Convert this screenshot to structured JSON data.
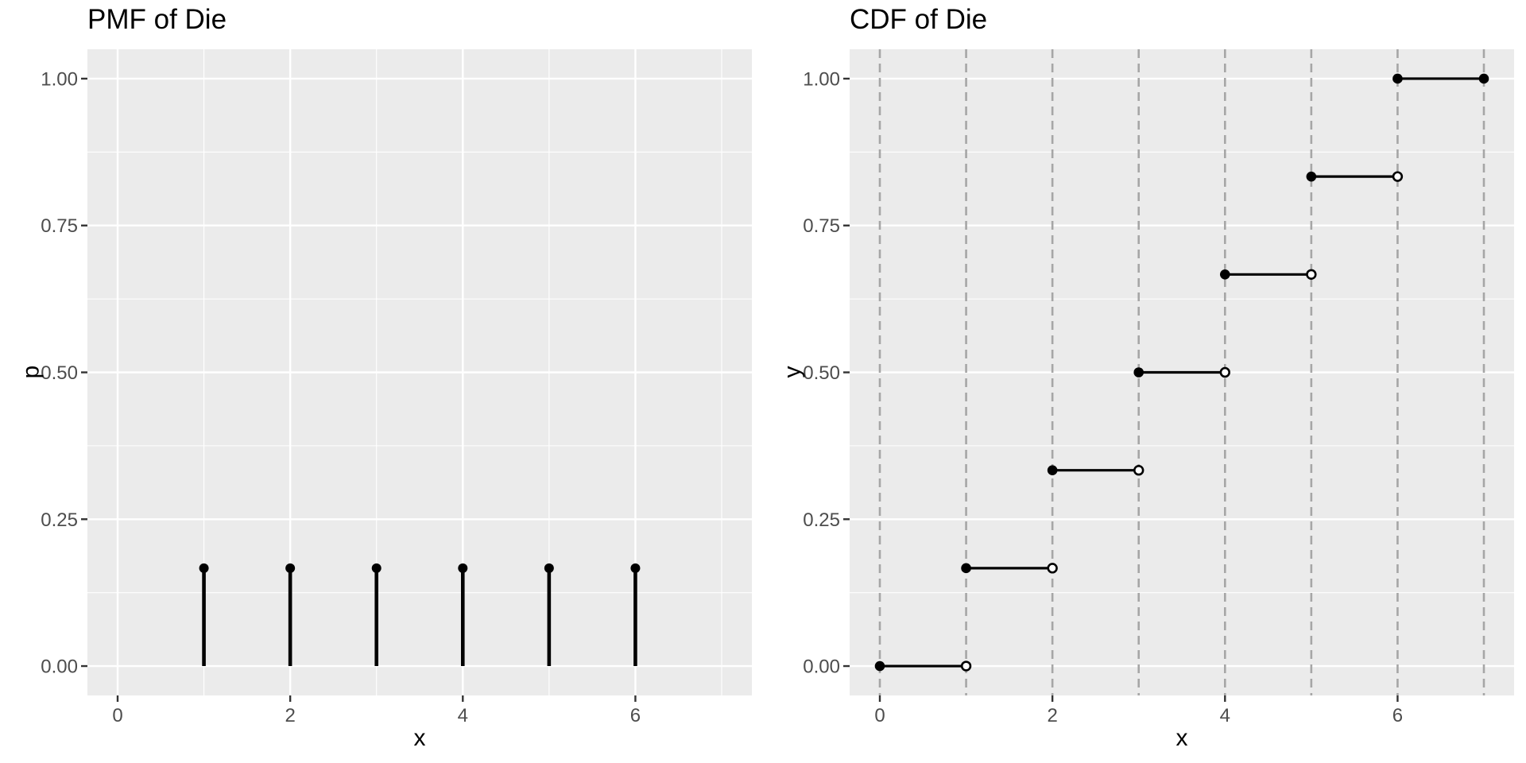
{
  "figure": {
    "background": "#FFFFFF",
    "panel_background": "#EBEBEB",
    "gridline_color": "#FFFFFF",
    "dashed_line_color": "#A6A6A6",
    "data_color": "#000000",
    "open_point_fill": "#FFFFFF",
    "tick_label_color": "#4D4D4D",
    "tick_mark_color": "#333333",
    "title_color": "#000000"
  },
  "chart_data": [
    {
      "type": "stem",
      "title": "PMF of Die",
      "xlabel": "x",
      "ylabel": "p",
      "x": [
        1,
        2,
        3,
        4,
        5,
        6
      ],
      "values": [
        0.1667,
        0.1667,
        0.1667,
        0.1667,
        0.1667,
        0.1667
      ],
      "xlim": [
        -0.35,
        7.35
      ],
      "ylim": [
        -0.05,
        1.05
      ],
      "x_tick_labels": [
        "0",
        "2",
        "4",
        "6"
      ],
      "x_tick_values": [
        0,
        2,
        4,
        6
      ],
      "x_minor_grid": [
        1,
        3,
        5,
        7
      ],
      "y_tick_labels": [
        "0.00",
        "0.25",
        "0.50",
        "0.75",
        "1.00"
      ],
      "y_tick_values": [
        0,
        0.25,
        0.5,
        0.75,
        1
      ],
      "y_minor_grid": [
        0.125,
        0.375,
        0.625,
        0.875
      ],
      "grid": "white major and minor on gray panel",
      "legend": "none"
    },
    {
      "type": "step",
      "title": "CDF of Die",
      "xlabel": "x",
      "ylabel": "y",
      "steps": [
        {
          "x_start": 0,
          "x_end": 1,
          "y": 0,
          "left": "closed",
          "right": "open"
        },
        {
          "x_start": 1,
          "x_end": 2,
          "y": 0.1667,
          "left": "closed",
          "right": "open"
        },
        {
          "x_start": 2,
          "x_end": 3,
          "y": 0.3333,
          "left": "closed",
          "right": "open"
        },
        {
          "x_start": 3,
          "x_end": 4,
          "y": 0.5,
          "left": "closed",
          "right": "open"
        },
        {
          "x_start": 4,
          "x_end": 5,
          "y": 0.6667,
          "left": "closed",
          "right": "open"
        },
        {
          "x_start": 5,
          "x_end": 6,
          "y": 0.8333,
          "left": "closed",
          "right": "open"
        },
        {
          "x_start": 6,
          "x_end": 7,
          "y": 1,
          "left": "closed",
          "right": "closed"
        }
      ],
      "dashed_vlines_x": [
        0,
        1,
        2,
        3,
        4,
        5,
        6,
        7
      ],
      "xlim": [
        -0.35,
        7.35
      ],
      "ylim": [
        -0.05,
        1.05
      ],
      "x_tick_labels": [
        "0",
        "2",
        "4",
        "6"
      ],
      "x_tick_values": [
        0,
        2,
        4,
        6
      ],
      "y_tick_labels": [
        "0.00",
        "0.25",
        "0.50",
        "0.75",
        "1.00"
      ],
      "y_tick_values": [
        0,
        0.25,
        0.5,
        0.75,
        1
      ],
      "y_minor_grid": [
        0.125,
        0.375,
        0.625,
        0.875
      ],
      "grid": "white horizontal majors/minors; gray dashed verticals at integers",
      "legend": "none"
    }
  ]
}
